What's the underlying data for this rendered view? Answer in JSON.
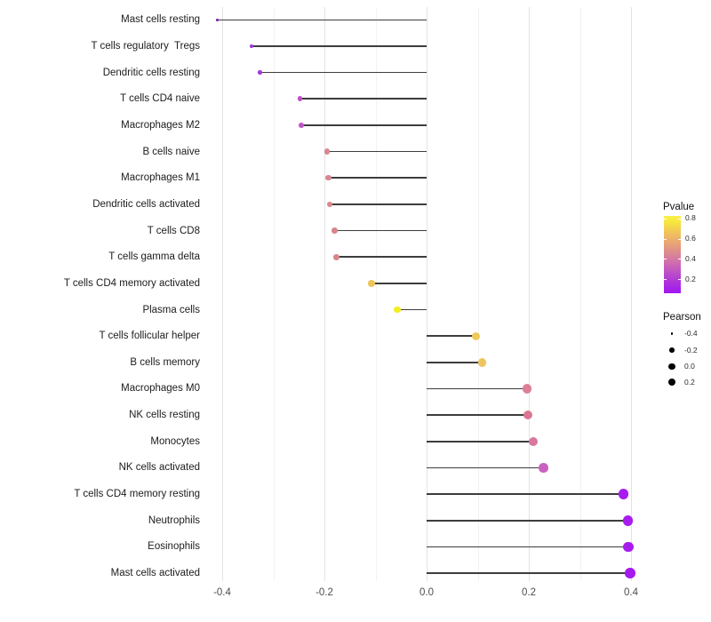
{
  "chart_data": {
    "type": "lollipop",
    "orientation": "horizontal",
    "x_axis": {
      "tick_labels": [
        "-0.4",
        "-0.2",
        "0.0",
        "0.2",
        "0.4"
      ],
      "tick_values": [
        -0.4,
        -0.2,
        0.0,
        0.2,
        0.4
      ],
      "minor_tick_values": [
        -0.3,
        -0.1,
        0.1,
        0.3
      ],
      "range": [
        -0.45,
        0.44
      ]
    },
    "grid": "vertical major and minor, light gray on white",
    "baseline_value": 0.0,
    "points": [
      {
        "label": "Mast cells resting",
        "pearson": -0.41,
        "color": "#7b28b4"
      },
      {
        "label": "T cells regulatory  Tregs",
        "pearson": -0.343,
        "color": "#9c36dc"
      },
      {
        "label": "Dendritic cells resting",
        "pearson": -0.326,
        "color": "#a03bd8"
      },
      {
        "label": "T cells CD4 naive",
        "pearson": -0.248,
        "color": "#c14fca"
      },
      {
        "label": "Macrophages M2",
        "pearson": -0.245,
        "color": "#c354c8"
      },
      {
        "label": "B cells naive",
        "pearson": -0.195,
        "color": "#d8868f"
      },
      {
        "label": "Macrophages M1",
        "pearson": -0.192,
        "color": "#d8868f"
      },
      {
        "label": "Dendritic cells activated",
        "pearson": -0.19,
        "color": "#d9878e"
      },
      {
        "label": "T cells CD8",
        "pearson": -0.18,
        "color": "#d8858c"
      },
      {
        "label": "T cells gamma delta",
        "pearson": -0.176,
        "color": "#d8868c"
      },
      {
        "label": "T cells CD4 memory activated",
        "pearson": -0.108,
        "color": "#ecc65c"
      },
      {
        "label": "Plasma cells",
        "pearson": -0.058,
        "color": "#f2ee20"
      },
      {
        "label": "T cells follicular helper",
        "pearson": 0.097,
        "color": "#f0ca58"
      },
      {
        "label": "B cells memory",
        "pearson": 0.109,
        "color": "#eec55e"
      },
      {
        "label": "Macrophages M0",
        "pearson": 0.196,
        "color": "#dc7e96"
      },
      {
        "label": "NK cells resting",
        "pearson": 0.199,
        "color": "#da7891"
      },
      {
        "label": "Monocytes",
        "pearson": 0.209,
        "color": "#d9779e"
      },
      {
        "label": "NK cells activated",
        "pearson": 0.229,
        "color": "#cb60c0"
      },
      {
        "label": "T cells CD4 memory resting",
        "pearson": 0.385,
        "color": "#a81cf0"
      },
      {
        "label": "Neutrophils",
        "pearson": 0.394,
        "color": "#a81cf0"
      },
      {
        "label": "Eosinophils",
        "pearson": 0.395,
        "color": "#a81cf0"
      },
      {
        "label": "Mast cells activated",
        "pearson": 0.398,
        "color": "#a619f0"
      }
    ],
    "legend_pvalue": {
      "title": "Pvalue",
      "tick_labels": [
        "0.8",
        "0.6",
        "0.4",
        "0.2"
      ],
      "gradient_low_color": "#a016f2",
      "gradient_mid_color": "#d06fae",
      "gradient_high_color": "#faf04a",
      "low_is": "purple (small Pvalue)",
      "high_is": "yellow (large Pvalue)"
    },
    "legend_pearson": {
      "title": "Pearson",
      "item_labels": [
        "-0.4",
        "-0.2",
        "0.0",
        "0.2"
      ],
      "dot_color": "#000000"
    }
  },
  "colors": {
    "background": "#ffffff",
    "segment": "#3d3d3d",
    "grid_major": "#e3e3e3",
    "grid_minor": "#f2f2f2",
    "axis_text": "#4d4d4d",
    "label_text": "#1c1c1c"
  }
}
